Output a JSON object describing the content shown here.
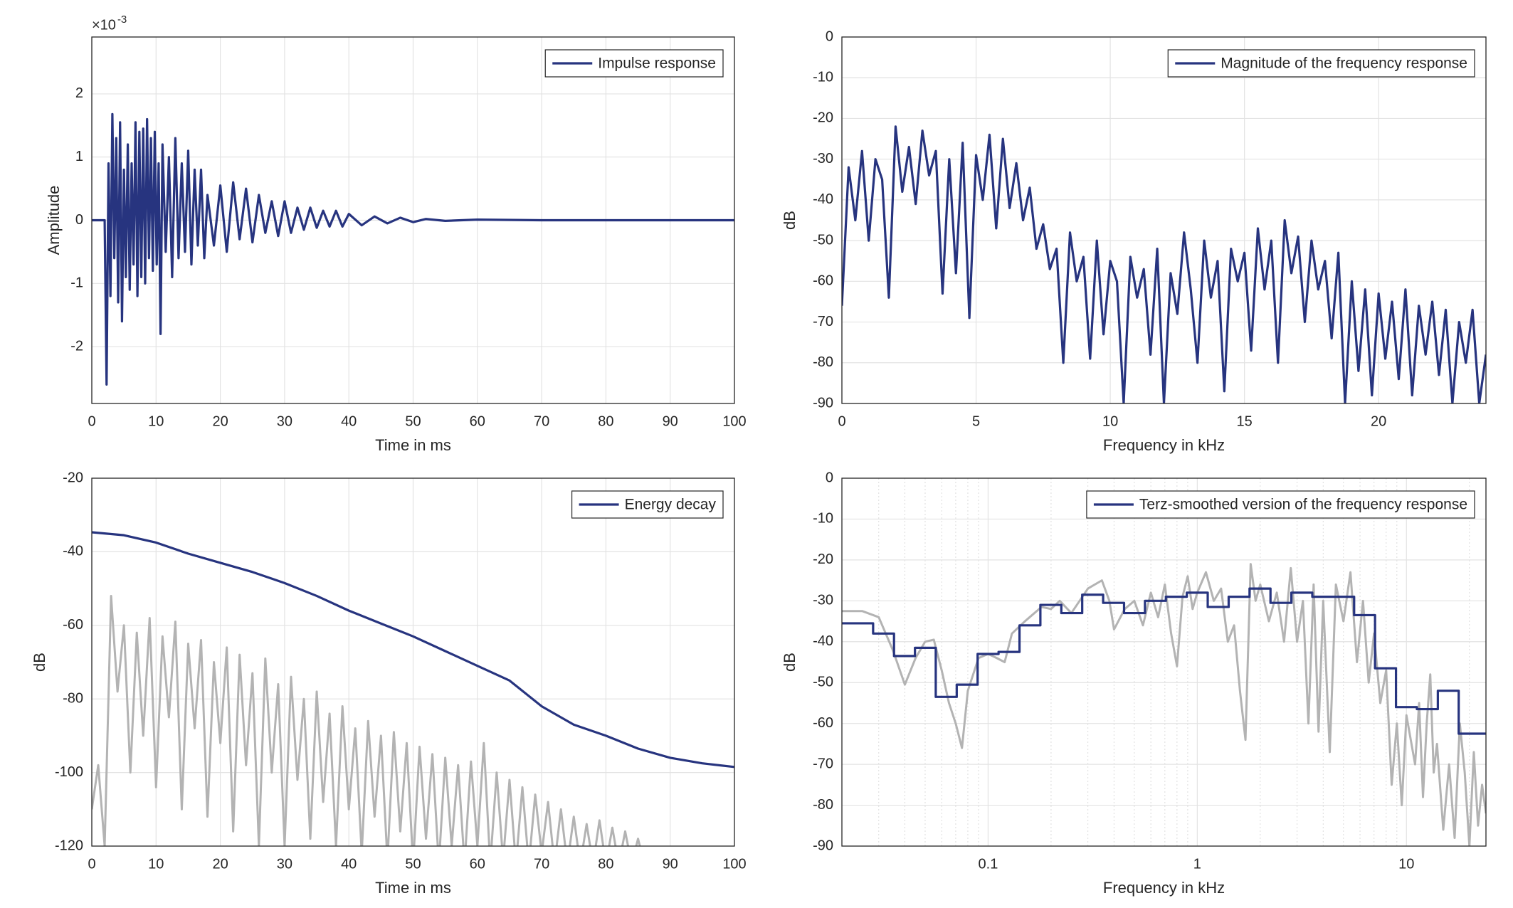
{
  "chart_data": [
    {
      "type": "line",
      "xlabel": "Time in ms",
      "ylabel": "Amplitude",
      "y_multiplier": "×10",
      "y_multiplier_exponent": "-3",
      "xlim": [
        0,
        100
      ],
      "xticks": [
        0,
        10,
        20,
        30,
        40,
        50,
        60,
        70,
        80,
        90,
        100
      ],
      "ylim": [
        -2.9,
        2.9
      ],
      "yticks": [
        -2,
        -1,
        0,
        1,
        2
      ],
      "grid": true,
      "legend": "northeast",
      "series": [
        {
          "name": "Impulse response",
          "color": "#27347f",
          "x": [
            0,
            2,
            2.3,
            2.6,
            2.9,
            3.2,
            3.5,
            3.8,
            4.1,
            4.4,
            4.7,
            5,
            5.3,
            5.6,
            5.9,
            6.2,
            6.5,
            6.8,
            7.1,
            7.4,
            7.7,
            8,
            8.3,
            8.6,
            8.9,
            9.2,
            9.5,
            9.8,
            10.1,
            10.4,
            10.7,
            11,
            11.5,
            12,
            12.5,
            13,
            13.5,
            14,
            14.5,
            15,
            15.5,
            16,
            16.5,
            17,
            17.5,
            18,
            19,
            20,
            21,
            22,
            23,
            24,
            25,
            26,
            27,
            28,
            29,
            30,
            31,
            32,
            33,
            34,
            35,
            36,
            37,
            38,
            39,
            40,
            42,
            44,
            46,
            48,
            50,
            52,
            55,
            60,
            70,
            80,
            90,
            100
          ],
          "values": [
            0,
            0,
            -2.6,
            0.9,
            -1.2,
            1.68,
            -0.6,
            1.3,
            -1.3,
            1.55,
            -1.6,
            0.8,
            -0.9,
            1.2,
            -1.1,
            0.9,
            -0.7,
            1.55,
            -1.2,
            1.4,
            -0.9,
            1.45,
            -1.0,
            1.6,
            -0.6,
            1.3,
            -0.8,
            1.4,
            -0.7,
            0.9,
            -1.8,
            1.2,
            -0.5,
            1.0,
            -0.9,
            1.3,
            -0.6,
            0.9,
            -0.5,
            1.1,
            -0.7,
            0.8,
            -0.4,
            0.8,
            -0.6,
            0.4,
            -0.4,
            0.55,
            -0.5,
            0.6,
            -0.3,
            0.5,
            -0.35,
            0.4,
            -0.2,
            0.3,
            -0.25,
            0.3,
            -0.2,
            0.2,
            -0.15,
            0.2,
            -0.12,
            0.15,
            -0.1,
            0.15,
            -0.1,
            0.1,
            -0.08,
            0.06,
            -0.05,
            0.04,
            -0.03,
            0.02,
            -0.01,
            0.01,
            0,
            0,
            0,
            0
          ]
        }
      ]
    },
    {
      "type": "line",
      "xlabel": "Frequency in kHz",
      "ylabel": "dB",
      "xlim": [
        0,
        24
      ],
      "xticks": [
        0,
        5,
        10,
        15,
        20
      ],
      "ylim": [
        -90,
        0
      ],
      "yticks": [
        -90,
        -80,
        -70,
        -60,
        -50,
        -40,
        -30,
        -20,
        -10,
        0
      ],
      "grid": true,
      "legend": "northeast",
      "series": [
        {
          "name": "Magnitude of the frequency response",
          "color": "#27347f",
          "x": [
            0,
            0.25,
            0.5,
            0.75,
            1,
            1.25,
            1.5,
            1.75,
            2,
            2.25,
            2.5,
            2.75,
            3,
            3.25,
            3.5,
            3.75,
            4,
            4.25,
            4.5,
            4.75,
            5,
            5.25,
            5.5,
            5.75,
            6,
            6.25,
            6.5,
            6.75,
            7,
            7.25,
            7.5,
            7.75,
            8,
            8.25,
            8.5,
            8.75,
            9,
            9.25,
            9.5,
            9.75,
            10,
            10.25,
            10.5,
            10.75,
            11,
            11.25,
            11.5,
            11.75,
            12,
            12.25,
            12.5,
            12.75,
            13,
            13.25,
            13.5,
            13.75,
            14,
            14.25,
            14.5,
            14.75,
            15,
            15.25,
            15.5,
            15.75,
            16,
            16.25,
            16.5,
            16.75,
            17,
            17.25,
            17.5,
            17.75,
            18,
            18.25,
            18.5,
            18.75,
            19,
            19.25,
            19.5,
            19.75,
            20,
            20.25,
            20.5,
            20.75,
            21,
            21.25,
            21.5,
            21.75,
            22,
            22.25,
            22.5,
            22.75,
            23,
            23.25,
            23.5,
            23.75,
            24
          ],
          "values": [
            -66,
            -32,
            -45,
            -28,
            -50,
            -30,
            -35,
            -64,
            -22,
            -38,
            -27,
            -41,
            -23,
            -34,
            -28,
            -63,
            -30,
            -58,
            -26,
            -69,
            -29,
            -40,
            -24,
            -47,
            -25,
            -42,
            -31,
            -45,
            -37,
            -52,
            -46,
            -57,
            -52,
            -80,
            -48,
            -60,
            -54,
            -79,
            -50,
            -73,
            -55,
            -60,
            -90,
            -54,
            -64,
            -57,
            -78,
            -52,
            -90,
            -58,
            -68,
            -48,
            -62,
            -80,
            -50,
            -64,
            -55,
            -87,
            -52,
            -60,
            -53,
            -77,
            -47,
            -62,
            -50,
            -80,
            -45,
            -58,
            -49,
            -70,
            -50,
            -62,
            -55,
            -74,
            -53,
            -90,
            -60,
            -82,
            -62,
            -88,
            -63,
            -79,
            -65,
            -84,
            -62,
            -88,
            -66,
            -78,
            -65,
            -83,
            -67,
            -90,
            -70,
            -80,
            -67,
            -90,
            -78
          ]
        }
      ]
    },
    {
      "type": "line",
      "xlabel": "Time in ms",
      "ylabel": "dB",
      "xlim": [
        0,
        100
      ],
      "xticks": [
        0,
        10,
        20,
        30,
        40,
        50,
        60,
        70,
        80,
        90,
        100
      ],
      "ylim": [
        -120,
        -20
      ],
      "yticks": [
        -120,
        -100,
        -80,
        -60,
        -40,
        -20
      ],
      "grid": true,
      "legend": "northeast",
      "series": [
        {
          "color": "#b3b3b3",
          "x": [
            0,
            1,
            2,
            3,
            4,
            5,
            6,
            7,
            8,
            9,
            10,
            11,
            12,
            13,
            14,
            15,
            16,
            17,
            18,
            19,
            20,
            21,
            22,
            23,
            24,
            25,
            26,
            27,
            28,
            29,
            30,
            31,
            32,
            33,
            34,
            35,
            36,
            37,
            38,
            39,
            40,
            41,
            42,
            43,
            44,
            45,
            46,
            47,
            48,
            49,
            50,
            51,
            52,
            53,
            54,
            55,
            56,
            57,
            58,
            59,
            60,
            61,
            62,
            63,
            64,
            65,
            66,
            67,
            68,
            69,
            70,
            71,
            72,
            73,
            74,
            75,
            76,
            77,
            78,
            79,
            80,
            81,
            82,
            83,
            84,
            85,
            86,
            87
          ],
          "values": [
            -110,
            -98,
            -120,
            -52,
            -78,
            -60,
            -100,
            -62,
            -90,
            -58,
            -104,
            -63,
            -85,
            -59,
            -110,
            -65,
            -88,
            -64,
            -112,
            -70,
            -92,
            -66,
            -116,
            -68,
            -98,
            -73,
            -120,
            -69,
            -100,
            -76,
            -120,
            -74,
            -102,
            -80,
            -118,
            -78,
            -108,
            -84,
            -120,
            -82,
            -110,
            -88,
            -122,
            -86,
            -112,
            -90,
            -124,
            -89,
            -116,
            -92,
            -125,
            -93,
            -118,
            -95,
            -125,
            -96,
            -120,
            -98,
            -125,
            -97,
            -120,
            -92,
            -125,
            -100,
            -124,
            -102,
            -125,
            -104,
            -125,
            -106,
            -122,
            -108,
            -125,
            -110,
            -125,
            -112,
            -125,
            -114,
            -125,
            -113,
            -125,
            -115,
            -125,
            -116,
            -125,
            -118,
            -125,
            -125
          ]
        },
        {
          "name": "Energy decay",
          "color": "#27347f",
          "x": [
            0,
            5,
            10,
            15,
            20,
            25,
            30,
            35,
            40,
            45,
            50,
            55,
            60,
            65,
            70,
            75,
            80,
            85,
            90,
            95,
            100
          ],
          "values": [
            -34.7,
            -35.5,
            -37.5,
            -40.5,
            -43,
            -45.5,
            -48.5,
            -52,
            -56,
            -59.5,
            -63,
            -67,
            -71,
            -75,
            -82,
            -87,
            -90,
            -93.5,
            -96,
            -97.5,
            -98.5
          ]
        }
      ]
    },
    {
      "type": "line",
      "xlabel": "Frequency in kHz",
      "ylabel": "dB",
      "xscale": "log",
      "xlim": [
        0.02,
        24
      ],
      "xticks": [
        0.1,
        1,
        10
      ],
      "xminorticks": [
        0.03,
        0.04,
        0.05,
        0.06,
        0.07,
        0.08,
        0.09,
        0.2,
        0.3,
        0.4,
        0.5,
        0.6,
        0.7,
        0.8,
        0.9,
        2,
        3,
        4,
        5,
        6,
        7,
        8,
        9,
        20
      ],
      "ylim": [
        -90,
        0
      ],
      "yticks": [
        -90,
        -80,
        -70,
        -60,
        -50,
        -40,
        -30,
        -20,
        -10,
        0
      ],
      "grid": true,
      "legend": "northeast",
      "series": [
        {
          "color": "#b3b3b3",
          "x": [
            0.02,
            0.025,
            0.03,
            0.035,
            0.04,
            0.045,
            0.05,
            0.055,
            0.06,
            0.065,
            0.07,
            0.075,
            0.08,
            0.09,
            0.1,
            0.11,
            0.12,
            0.13,
            0.15,
            0.18,
            0.2,
            0.22,
            0.25,
            0.3,
            0.35,
            0.38,
            0.4,
            0.45,
            0.5,
            0.55,
            0.6,
            0.65,
            0.7,
            0.75,
            0.8,
            0.85,
            0.9,
            0.95,
            1,
            1.1,
            1.2,
            1.3,
            1.4,
            1.5,
            1.6,
            1.7,
            1.8,
            1.9,
            2,
            2.2,
            2.4,
            2.6,
            2.8,
            3,
            3.2,
            3.4,
            3.6,
            3.8,
            4,
            4.3,
            4.6,
            5,
            5.4,
            5.8,
            6.2,
            6.6,
            7,
            7.5,
            8,
            8.5,
            9,
            9.5,
            10,
            11,
            11.5,
            12,
            12.5,
            13,
            13.5,
            14,
            15,
            16,
            17,
            18,
            19,
            20,
            21,
            22,
            23,
            24
          ],
          "values": [
            -32.5,
            -32.5,
            -34,
            -42,
            -50.5,
            -44,
            -40,
            -39.5,
            -47,
            -55,
            -60,
            -66,
            -52,
            -44,
            -43,
            -44,
            -45,
            -38,
            -35,
            -31.5,
            -32,
            -30,
            -33,
            -27,
            -25,
            -30,
            -37,
            -32,
            -30,
            -36,
            -28,
            -34,
            -26,
            -38,
            -46,
            -29,
            -24,
            -32,
            -28,
            -23,
            -30,
            -27,
            -40,
            -36,
            -52,
            -64,
            -21,
            -30,
            -26,
            -35,
            -28,
            -40,
            -22,
            -40,
            -30,
            -60,
            -26,
            -62,
            -30,
            -67,
            -26,
            -35,
            -23,
            -45,
            -30,
            -50,
            -38,
            -55,
            -47,
            -75,
            -60,
            -80,
            -58,
            -70,
            -55,
            -78,
            -60,
            -48,
            -72,
            -65,
            -86,
            -70,
            -88,
            -60,
            -72,
            -90,
            -67,
            -85,
            -75,
            -82
          ]
        },
        {
          "name": "Terz-smoothed version of the frequency response",
          "color": "#27347f",
          "step": "post",
          "x": [
            0.02,
            0.0282,
            0.0355,
            0.0447,
            0.0562,
            0.0708,
            0.0891,
            0.1122,
            0.1413,
            0.1778,
            0.2239,
            0.2818,
            0.3548,
            0.4467,
            0.5623,
            0.7079,
            0.8913,
            1.122,
            1.413,
            1.778,
            2.239,
            2.818,
            3.548,
            4.467,
            5.623,
            7.079,
            8.913,
            11.22,
            14.13,
            17.78
          ],
          "values": [
            -35.5,
            -38,
            -43.5,
            -41.5,
            -53.5,
            -50.5,
            -43,
            -42.5,
            -36,
            -31,
            -33,
            -28.5,
            -30.5,
            -33,
            -30,
            -29,
            -28,
            -31.5,
            -29,
            -27,
            -30.5,
            -28,
            -29,
            -29,
            -33.5,
            -46.5,
            -56,
            -56.5,
            -52,
            -62.5
          ]
        }
      ]
    }
  ]
}
